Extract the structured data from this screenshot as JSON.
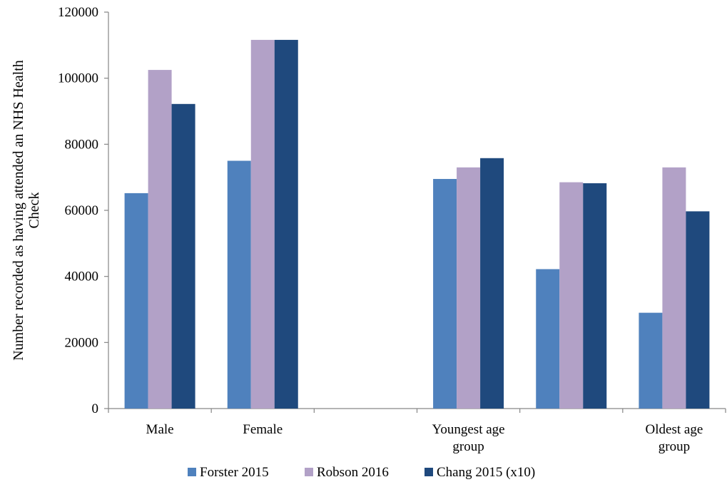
{
  "chart_data": {
    "type": "bar",
    "categories": [
      [
        "Male"
      ],
      [
        "Female"
      ],
      [],
      [
        "Youngest age",
        "group"
      ],
      [],
      [
        "Oldest age",
        "group"
      ]
    ],
    "series": [
      {
        "name": "Forster 2015",
        "color": "#4f81bd",
        "values": [
          65200,
          75000,
          null,
          69500,
          42200,
          29000
        ]
      },
      {
        "name": "Robson 2016",
        "color": "#b2a1c7",
        "values": [
          102500,
          111600,
          null,
          73000,
          68500,
          73000
        ]
      },
      {
        "name": "Chang 2015 (x10)",
        "color": "#1f497d",
        "values": [
          92200,
          111600,
          null,
          75800,
          68200,
          59700
        ]
      }
    ],
    "ylabel": [
      "Number recorded as having attended an NHS Health",
      "Check"
    ],
    "ylim": [
      0,
      120000
    ],
    "yticks": [
      "0",
      "20000",
      "40000",
      "60000",
      "80000",
      "100000",
      "120000"
    ],
    "legend_position": "bottom",
    "grid": false
  }
}
